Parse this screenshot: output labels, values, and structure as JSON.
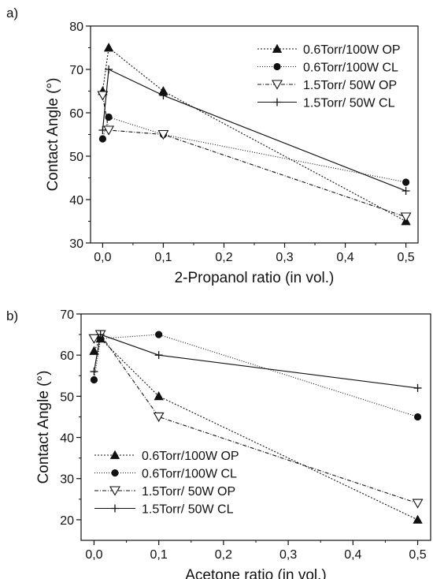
{
  "chart_data": [
    {
      "type": "line",
      "panel_label": "a)",
      "xlabel": "2-Propanol ratio (in vol.)",
      "ylabel": "Contact Angle (°)",
      "xlim": [
        -0.02,
        0.52
      ],
      "ylim": [
        30,
        80
      ],
      "xticks": [
        0.0,
        0.1,
        0.2,
        0.3,
        0.4,
        0.5
      ],
      "xtick_labels": [
        "0,0",
        "0,1",
        "0,2",
        "0,3",
        "0,4",
        "0,5"
      ],
      "yticks": [
        30,
        40,
        50,
        60,
        70,
        80
      ],
      "ytick_labels": [
        "30",
        "40",
        "50",
        "60",
        "70",
        "80"
      ],
      "grid": false,
      "legend_position": "top-right",
      "series": [
        {
          "name": "0.6Torr/100W OP",
          "marker": "triangle-filled",
          "line": "dotted",
          "x": [
            0.0,
            0.01,
            0.1,
            0.5
          ],
          "y": [
            65,
            75,
            65,
            35
          ]
        },
        {
          "name": "0.6Torr/100W CL",
          "marker": "circle-filled",
          "line": "dotted-fine",
          "x": [
            0.0,
            0.01,
            0.1,
            0.5
          ],
          "y": [
            54,
            59,
            55,
            44
          ]
        },
        {
          "name": "1.5Torr/ 50W OP",
          "marker": "triangle-open-down",
          "line": "dash-dot",
          "x": [
            0.0,
            0.01,
            0.1,
            0.5
          ],
          "y": [
            64,
            56,
            55,
            36
          ]
        },
        {
          "name": "1.5Torr/ 50W CL",
          "marker": "plus",
          "line": "solid",
          "x": [
            0.0,
            0.01,
            0.1,
            0.5
          ],
          "y": [
            56,
            70,
            64,
            42
          ]
        }
      ]
    },
    {
      "type": "line",
      "panel_label": "b)",
      "xlabel": "Acetone ratio (in vol.)",
      "ylabel": "Contact Angle (°)",
      "xlim": [
        -0.02,
        0.52
      ],
      "ylim": [
        15,
        70
      ],
      "xticks": [
        0.0,
        0.1,
        0.2,
        0.3,
        0.4,
        0.5
      ],
      "xtick_labels": [
        "0,0",
        "0,1",
        "0,2",
        "0,3",
        "0,4",
        "0,5"
      ],
      "yticks": [
        20,
        30,
        40,
        50,
        60,
        70
      ],
      "ytick_labels": [
        "20",
        "30",
        "40",
        "50",
        "60",
        "70"
      ],
      "grid": false,
      "legend_position": "bottom-left",
      "series": [
        {
          "name": "0.6Torr/100W OP",
          "marker": "triangle-filled",
          "line": "dotted",
          "x": [
            0.0,
            0.01,
            0.1,
            0.5
          ],
          "y": [
            61,
            64,
            50,
            20
          ]
        },
        {
          "name": "0.6Torr/100W CL",
          "marker": "circle-filled",
          "line": "dotted-fine",
          "x": [
            0.0,
            0.01,
            0.1,
            0.5
          ],
          "y": [
            54,
            64,
            65,
            45
          ]
        },
        {
          "name": "1.5Torr/ 50W OP",
          "marker": "triangle-open-down",
          "line": "dash-dot",
          "x": [
            0.0,
            0.01,
            0.1,
            0.5
          ],
          "y": [
            64,
            65,
            45,
            24
          ]
        },
        {
          "name": "1.5Torr/ 50W CL",
          "marker": "plus",
          "line": "solid",
          "x": [
            0.0,
            0.01,
            0.1,
            0.5
          ],
          "y": [
            56,
            65,
            60,
            52
          ]
        }
      ]
    }
  ]
}
